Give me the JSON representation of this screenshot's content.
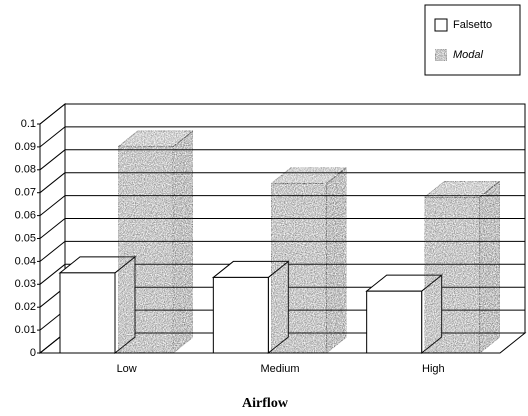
{
  "chart_data": {
    "type": "bar3d",
    "x_label": "Airflow",
    "categories": [
      "Low",
      "Medium",
      "High"
    ],
    "series": [
      {
        "name": "Falsetto",
        "color": "#ffffff",
        "values": [
          0.035,
          0.033,
          0.027
        ]
      },
      {
        "name": "Modal",
        "color": "#4a4a4a",
        "values": [
          0.09,
          0.074,
          0.068
        ]
      }
    ],
    "ylim": [
      0,
      0.1
    ],
    "yticks": [
      0,
      0.01,
      0.02,
      0.03,
      0.04,
      0.05,
      0.06,
      0.07,
      0.08,
      0.09,
      0.1
    ],
    "grid": true,
    "legend": "top-right"
  }
}
